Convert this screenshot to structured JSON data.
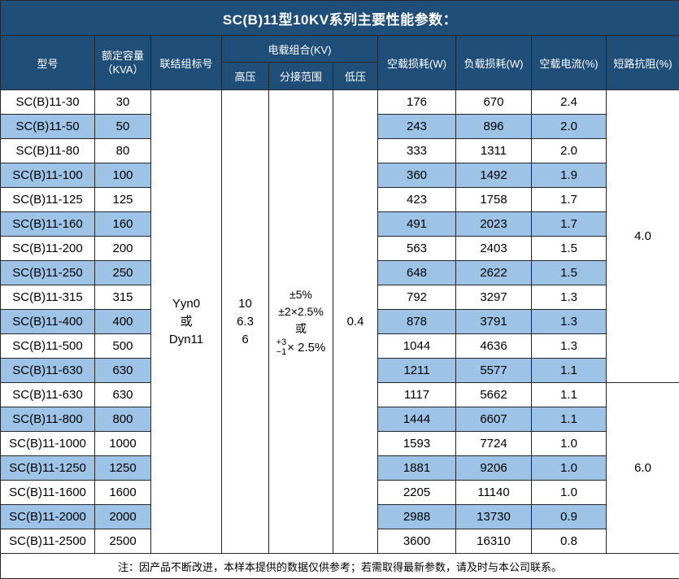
{
  "title": "SC(B)11型10KV系列主要性能参数：",
  "header": {
    "model": "型号",
    "capacity_line1": "额定容量",
    "capacity_line2": "（KVA）",
    "connection_group": "联结组标号",
    "voltage_combo": "电载组合(KV)",
    "high_voltage": "高压",
    "tap_range": "分接范围",
    "low_voltage": "低压",
    "no_load_loss": "空载损耗(W)",
    "load_loss": "负载损耗(W)",
    "no_load_current": "空载电流(%)",
    "impedance": "短路抗阻(%)"
  },
  "merged": {
    "connection_line1": "Yyn0",
    "connection_line2": "或",
    "connection_line3": "Dyn11",
    "hv_line1": "10",
    "hv_line2": "6.3",
    "hv_line3": "6",
    "tap_line1": "±5%",
    "tap_line2": "±2×2.5%",
    "tap_line3": "或",
    "tap_stack_top": "+3",
    "tap_stack_bottom": "−1",
    "tap_stack_suffix": "× 2.5%",
    "low_voltage": "0.4",
    "impedance_rows_1_12": "4.0",
    "impedance_rows_13_19": "6.0"
  },
  "rows": [
    {
      "model": "SC(B)11-30",
      "capacity": "30",
      "no_load_loss": "176",
      "load_loss": "670",
      "no_load_current": "2.4"
    },
    {
      "model": "SC(B)11-50",
      "capacity": "50",
      "no_load_loss": "243",
      "load_loss": "896",
      "no_load_current": "2.0"
    },
    {
      "model": "SC(B)11-80",
      "capacity": "80",
      "no_load_loss": "333",
      "load_loss": "1311",
      "no_load_current": "2.0"
    },
    {
      "model": "SC(B)11-100",
      "capacity": "100",
      "no_load_loss": "360",
      "load_loss": "1492",
      "no_load_current": "1.9"
    },
    {
      "model": "SC(B)11-125",
      "capacity": "125",
      "no_load_loss": "423",
      "load_loss": "1758",
      "no_load_current": "1.7"
    },
    {
      "model": "SC(B)11-160",
      "capacity": "160",
      "no_load_loss": "491",
      "load_loss": "2023",
      "no_load_current": "1.7"
    },
    {
      "model": "SC(B)11-200",
      "capacity": "200",
      "no_load_loss": "563",
      "load_loss": "2403",
      "no_load_current": "1.5"
    },
    {
      "model": "SC(B)11-250",
      "capacity": "250",
      "no_load_loss": "648",
      "load_loss": "2622",
      "no_load_current": "1.5"
    },
    {
      "model": "SC(B)11-315",
      "capacity": "315",
      "no_load_loss": "792",
      "load_loss": "3297",
      "no_load_current": "1.3"
    },
    {
      "model": "SC(B)11-400",
      "capacity": "400",
      "no_load_loss": "878",
      "load_loss": "3791",
      "no_load_current": "1.3"
    },
    {
      "model": "SC(B)11-500",
      "capacity": "500",
      "no_load_loss": "1044",
      "load_loss": "4636",
      "no_load_current": "1.3"
    },
    {
      "model": "SC(B)11-630",
      "capacity": "630",
      "no_load_loss": "1211",
      "load_loss": "5577",
      "no_load_current": "1.1"
    },
    {
      "model": "SC(B)11-630",
      "capacity": "630",
      "no_load_loss": "1117",
      "load_loss": "5662",
      "no_load_current": "1.1"
    },
    {
      "model": "SC(B)11-800",
      "capacity": "800",
      "no_load_loss": "1444",
      "load_loss": "6607",
      "no_load_current": "1.1"
    },
    {
      "model": "SC(B)11-1000",
      "capacity": "1000",
      "no_load_loss": "1593",
      "load_loss": "7724",
      "no_load_current": "1.0"
    },
    {
      "model": "SC(B)11-1250",
      "capacity": "1250",
      "no_load_loss": "1881",
      "load_loss": "9206",
      "no_load_current": "1.0"
    },
    {
      "model": "SC(B)11-1600",
      "capacity": "1600",
      "no_load_loss": "2205",
      "load_loss": "11140",
      "no_load_current": "1.0"
    },
    {
      "model": "SC(B)11-2000",
      "capacity": "2000",
      "no_load_loss": "2988",
      "load_loss": "13730",
      "no_load_current": "0.9"
    },
    {
      "model": "SC(B)11-2500",
      "capacity": "2500",
      "no_load_loss": "3600",
      "load_loss": "16310",
      "no_load_current": "0.8"
    }
  ],
  "note": "注：因产品不断改进，本样本提供的数据仅供参考；若需取得最新参数，请及时与本公司联系。",
  "colors": {
    "header_bg": "#1F4E79",
    "header_text": "#FFFFFF",
    "stripe_bg": "#9DC3E6",
    "border": "#262626"
  }
}
